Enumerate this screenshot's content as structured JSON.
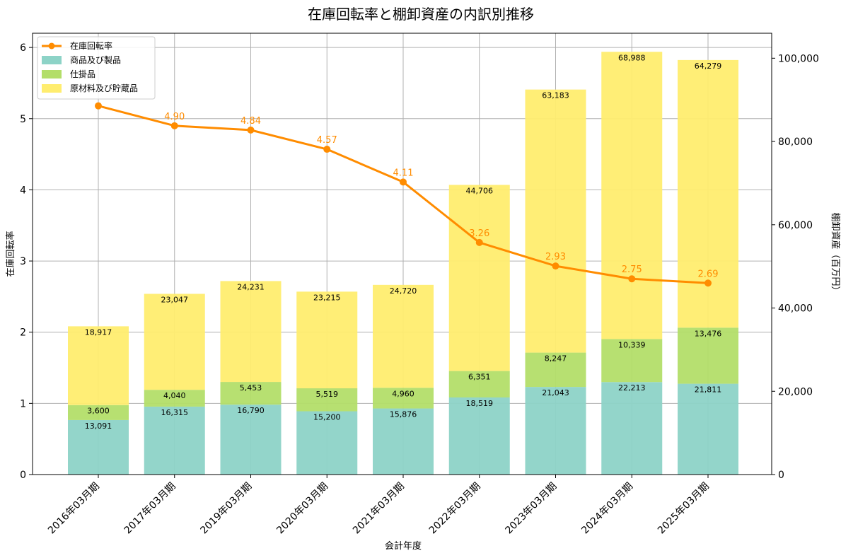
{
  "chart_data": {
    "type": "bar",
    "title": "在庫回転率と棚卸資産の内訳別推移",
    "xlabel": "会計年度",
    "ylabel_left": "在庫回転率",
    "ylabel_right": "棚卸資産（百万円）",
    "categories": [
      "2016年03月期",
      "2017年03月期",
      "2019年03月期",
      "2020年03月期",
      "2021年03月期",
      "2022年03月期",
      "2023年03月期",
      "2024年03月期",
      "2025年03月期"
    ],
    "stacked": true,
    "grid": true,
    "legend_position": "top-left",
    "ylim_left": [
      0,
      6.2
    ],
    "yticks_left": [
      0,
      1,
      2,
      3,
      4,
      5,
      6
    ],
    "ylim_right": [
      0,
      106000
    ],
    "yticks_right": [
      0,
      20000,
      40000,
      60000,
      80000,
      100000
    ],
    "yticklabels_right": [
      "0",
      "20,000",
      "40,000",
      "60,000",
      "80,000",
      "100,000"
    ],
    "series": [
      {
        "name": "商品及び製品",
        "color": "#8dd3c7",
        "axis": "right",
        "values": [
          13091,
          16315,
          16790,
          15200,
          15876,
          18519,
          21043,
          22213,
          21811
        ],
        "labels": [
          "13,091",
          "16,315",
          "16,790",
          "15,200",
          "15,876",
          "18,519",
          "21,043",
          "22,213",
          "21,811"
        ]
      },
      {
        "name": "仕掛品",
        "color": "#b3de69",
        "axis": "right",
        "values": [
          3600,
          4040,
          5453,
          5519,
          4960,
          6351,
          8247,
          10339,
          13476
        ],
        "labels": [
          "3,600",
          "4,040",
          "5,453",
          "5,519",
          "4,960",
          "6,351",
          "8,247",
          "10,339",
          "13,476"
        ]
      },
      {
        "name": "原材料及び貯蔵品",
        "color": "#ffed6f",
        "axis": "right",
        "values": [
          18917,
          23047,
          24231,
          23215,
          24720,
          44706,
          63183,
          68988,
          64279
        ],
        "labels": [
          "18,917",
          "23,047",
          "24,231",
          "23,215",
          "24,720",
          "44,706",
          "63,183",
          "68,988",
          "64,279"
        ]
      }
    ],
    "line_series": {
      "name": "在庫回転率",
      "color": "#ff8c00",
      "axis": "left",
      "values": [
        5.18,
        4.9,
        4.84,
        4.57,
        4.11,
        3.26,
        2.93,
        2.75,
        2.69
      ],
      "labels": [
        "",
        "4.90",
        "4.84",
        "4.57",
        "4.11",
        "3.26",
        "2.93",
        "2.75",
        "2.69"
      ]
    }
  }
}
